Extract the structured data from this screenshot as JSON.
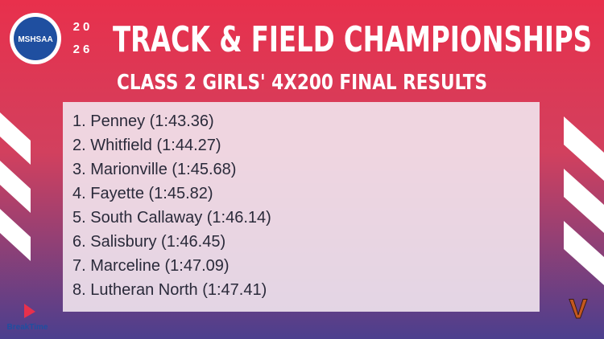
{
  "logo": {
    "text": "MSHSAA"
  },
  "year": [
    "20",
    "26"
  ],
  "header": {
    "title": "TRACK & FIELD CHAMPIONSHIPS",
    "subtitle": "CLASS 2 GIRLS' 4X200 FINAL RESULTS"
  },
  "results": [
    "1. Penney (1:43.36)",
    "2. Whitfield (1:44.27)",
    "3. Marionville (1:45.68)",
    "4. Fayette (1:45.82)",
    "5. South Callaway (1:46.14)",
    "6. Salisbury (1:46.45)",
    "7. Marceline (1:47.09)",
    "8. Lutheran North (1:47.41)"
  ],
  "sponsor": "BreakTime"
}
